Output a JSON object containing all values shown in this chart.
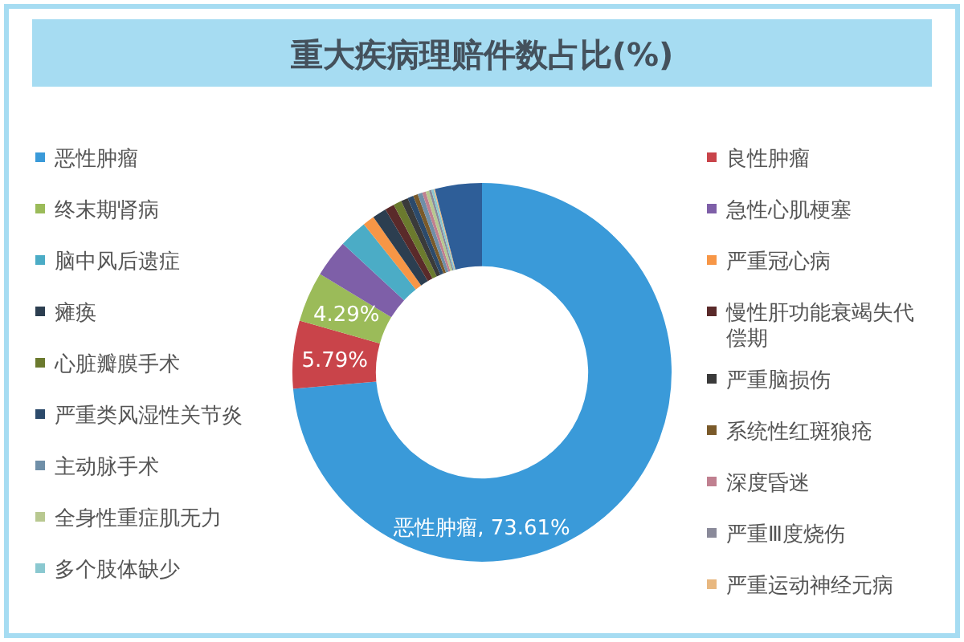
{
  "chart_data": {
    "type": "donut",
    "title": "重大疾病理赔件数占比(%)",
    "categories": [
      "恶性肿瘤",
      "良性肿瘤",
      "终末期肾病",
      "急性心肌梗塞",
      "脑中风后遗症",
      "严重冠心病",
      "瘫痪",
      "慢性肝功能衰竭失代偿期",
      "心脏瓣膜手术",
      "严重脑损伤",
      "严重类风湿性关节炎",
      "系统性红斑狼疮",
      "主动脉手术",
      "深度昏迷",
      "全身性重症肌无力",
      "严重Ⅲ度烧伤",
      "多个肢体缺少",
      "严重运动神经元病",
      null
    ],
    "values": [
      73.61,
      5.79,
      4.29,
      3.2,
      2.4,
      1.0,
      1.2,
      0.8,
      0.7,
      0.6,
      0.5,
      0.4,
      0.4,
      0.3,
      0.3,
      0.2,
      0.2,
      0.1,
      4.01
    ],
    "colors": [
      "#3a9ad9",
      "#c9444a",
      "#9bbb59",
      "#7e5fa8",
      "#4bacc6",
      "#f79646",
      "#2c3e50",
      "#5a2a2a",
      "#6b7a2e",
      "#3a3a3a",
      "#2c4a6b",
      "#7a5a2a",
      "#6f8fa8",
      "#c08090",
      "#b8c890",
      "#8a8a9a",
      "#8ac8d0",
      "#e8b880",
      "#2e5e98"
    ],
    "value_labels": [
      "恶性肿瘤, 73.61%",
      "5.79%",
      "4.29%",
      null,
      null,
      null,
      null,
      null,
      null,
      null,
      null,
      null,
      null,
      null,
      null,
      null,
      null,
      null,
      null
    ],
    "legend": "left"
  }
}
